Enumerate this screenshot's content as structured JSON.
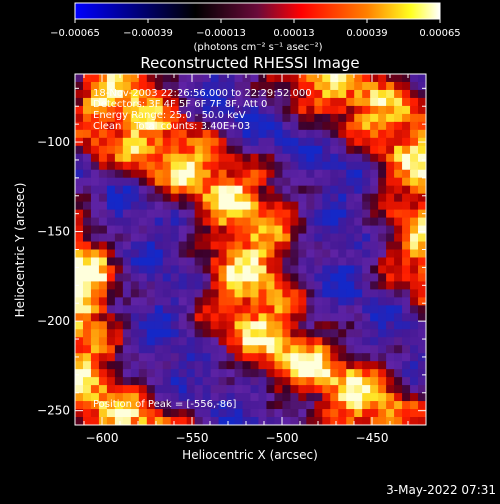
{
  "chart_data": {
    "type": "heatmap",
    "title": "Reconstructed RHESSI Image",
    "xlabel": "Heliocentric X (arcsec)",
    "ylabel": "Heliocentric Y (arcsec)",
    "xlim": [
      -615,
      -420
    ],
    "ylim": [
      -258,
      -62
    ],
    "x_ticks": [
      -600,
      -550,
      -500,
      -450
    ],
    "y_ticks": [
      -100,
      -150,
      -200,
      -250
    ],
    "x_tick_labels": [
      "−600",
      "−550",
      "−500",
      "−450"
    ],
    "y_tick_labels": [
      "−100",
      "−150",
      "−200",
      "−250"
    ],
    "colorbar": {
      "min": -0.00065,
      "max": 0.00065,
      "ticks": [
        -0.00065,
        -0.00039,
        -0.00013,
        0.00013,
        0.00039,
        0.00065
      ],
      "tick_labels": [
        "−0.00065",
        "−0.00039",
        "−0.00013",
        "0.00013",
        "0.00039",
        "0.00065"
      ],
      "unit_label": "(photons cm⁻² s⁻¹ asec⁻²)",
      "colors": [
        "#0000ff",
        "#000000",
        "#5a1fa0",
        "#ff0000",
        "#ff8000",
        "#ffff00",
        "#ffffff"
      ]
    },
    "annotations": [
      "18-Nov-2003 22:26:56.000 to 22:29:52.000",
      "Detectors: 3F 4F 5F 6F 7F 8F, Att 0",
      "Energy Range: 25.0 - 50.0 keV",
      "Clean    Total counts: 3.40E+03"
    ],
    "position_label": "Position of Peak = [-556,-86]",
    "stripe_direction": "diagonal, bright bands from upper-left toward lower-right"
  },
  "timestamp": "3-May-2022 07:31"
}
